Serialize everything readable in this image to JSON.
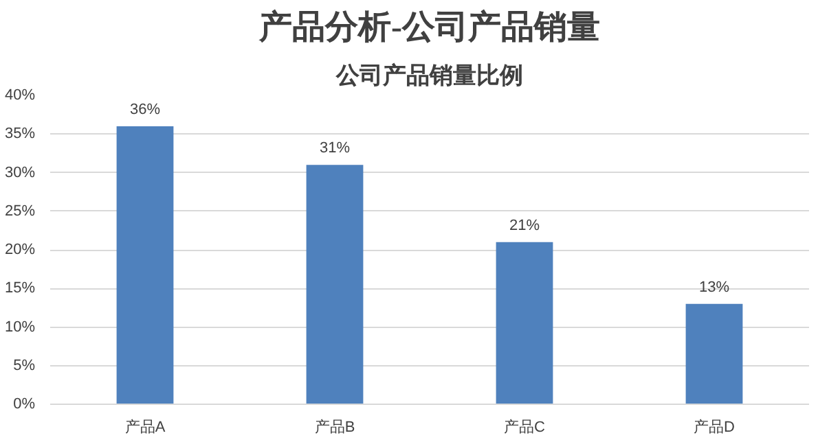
{
  "chart_data": {
    "type": "bar",
    "title": "产品分析-公司产品销量",
    "subtitle": "公司产品销量比例",
    "categories": [
      "产品A",
      "产品B",
      "产品C",
      "产品D"
    ],
    "values": [
      36,
      31,
      21,
      13
    ],
    "color": "#4f81bd",
    "value_labels": [
      "36%",
      "31%",
      "21%",
      "13%"
    ],
    "ylim": [
      0,
      40
    ],
    "yticks": [
      {
        "value": 0,
        "label": "0%"
      },
      {
        "value": 5,
        "label": "5%"
      },
      {
        "value": 10,
        "label": "10%"
      },
      {
        "value": 15,
        "label": "15%"
      },
      {
        "value": 20,
        "label": "20%"
      },
      {
        "value": 25,
        "label": "25%"
      },
      {
        "value": 30,
        "label": "30%"
      },
      {
        "value": 35,
        "label": "35%"
      },
      {
        "value": 40,
        "label": "40%"
      }
    ],
    "grid": "y"
  }
}
